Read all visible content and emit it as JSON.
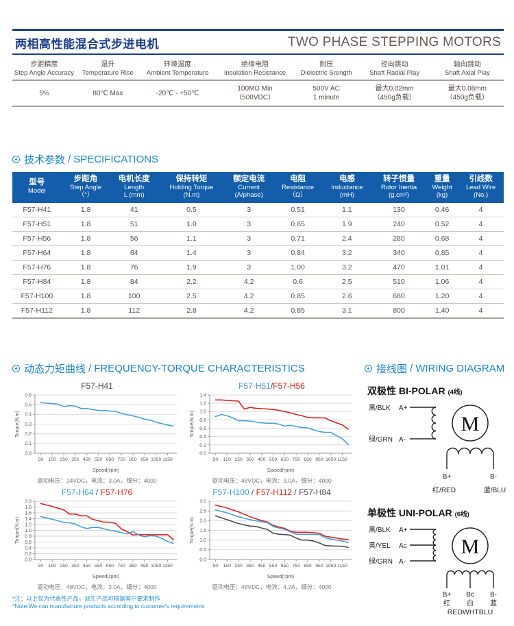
{
  "colors": {
    "navy": "#1a3e8f",
    "table_header": "#135dab",
    "section_blue": "#1583cf",
    "note_blue": "#1e8fdd",
    "line_blue": "#45a1d8",
    "line_red": "#e0201c",
    "line_dark": "#4a4a4a"
  },
  "header": {
    "title_zh": "两相高性能混合式步进电机",
    "title_en": "TWO PHASE STEPPING MOTORS"
  },
  "general_specs": {
    "columns": [
      {
        "zh": "步距精度",
        "en": "Step Angle Accuracy",
        "value": "5%",
        "value2": ""
      },
      {
        "zh": "温升",
        "en": "Temperature Rise",
        "value": "80℃  Max",
        "value2": ""
      },
      {
        "zh": "环境温度",
        "en": "Ambient Temperature",
        "value": "-20℃ - +50℃",
        "value2": ""
      },
      {
        "zh": "绝缘电阻",
        "en": "Insulation Resistance",
        "value": "100MΩ Min",
        "value2": "（500VDC）"
      },
      {
        "zh": "耐压",
        "en": "Dielectric Srength",
        "value": "500V AC",
        "value2": "1 minute"
      },
      {
        "zh": "径向跳动",
        "en": "Shaft Radial Play",
        "value": "最大0.02mm",
        "value2": "（450g负载）"
      },
      {
        "zh": "轴向跳动",
        "en": "Shaft Axial Play",
        "value": "最大0.08mm",
        "value2": "（450g负载）"
      }
    ]
  },
  "sections": {
    "specs": {
      "zh": "技术参数",
      "sep": "/",
      "en": "SPECIFICATIONS"
    },
    "freq": {
      "zh": "动态力矩曲线",
      "sep": "/",
      "en": "FREQUENCY-TORQUE CHARACTERISTICS"
    },
    "wiring": {
      "zh": "接线图",
      "sep": "/",
      "en": "WIRING DIAGRAM"
    }
  },
  "spec_table": {
    "headers": [
      [
        "型号",
        "Model"
      ],
      [
        "步距角",
        "Step Angle",
        "（°）"
      ],
      [
        "电机长度",
        "Length",
        "L (mm)"
      ],
      [
        "保持转矩",
        "Holding Torque",
        "(N.m)"
      ],
      [
        "额定电流",
        "Current",
        "(A/phase)"
      ],
      [
        "电阻",
        "Resistance",
        "（Ω）"
      ],
      [
        "电感",
        "Inductance",
        "(mH)"
      ],
      [
        "转子惯量",
        "Rotor Inertia",
        "(g.cm²)"
      ],
      [
        "重量",
        "Weight",
        "(kg)"
      ],
      [
        "引线数",
        "Lead Wire",
        "(No.)"
      ]
    ],
    "rows": [
      [
        "F57-H41",
        "1.8",
        "41",
        "0.5",
        "3",
        "0.51",
        "1.1",
        "130",
        "0.46",
        "4"
      ],
      [
        "F57-H51",
        "1.8",
        "51",
        "1.0",
        "3",
        "0.65",
        "1.9",
        "240",
        "0.52",
        "4"
      ],
      [
        "F57-H56",
        "1.8",
        "56",
        "1.1",
        "3",
        "0.71",
        "2.4",
        "280",
        "0.68",
        "4"
      ],
      [
        "F57-H64",
        "1.8",
        "64",
        "1.4",
        "3",
        "0.84",
        "3.2",
        "340",
        "0.85",
        "4"
      ],
      [
        "F57-H76",
        "1.8",
        "76",
        "1.9",
        "3",
        "1.00",
        "3.2",
        "470",
        "1.01",
        "4"
      ],
      [
        "F57-H84",
        "1.8",
        "84",
        "2.2",
        "4.2",
        "0.6",
        "2.5",
        "510",
        "1.06",
        "4"
      ],
      [
        "F57-H100",
        "1.8",
        "100",
        "2.5",
        "4.2",
        "0.85",
        "2.6",
        "680",
        "1.20",
        "4"
      ],
      [
        "F57-H112",
        "1.8",
        "112",
        "2.8",
        "4.2",
        "0.85",
        "3.1",
        "800",
        "1.40",
        "4"
      ]
    ]
  },
  "chart_data": [
    {
      "type": "line",
      "title_parts": [
        {
          "text": "F57-H41",
          "color": "#4a4a4a"
        }
      ],
      "xlabel": "Speed(rpm)",
      "ylabel": "Torque(N.m)",
      "caption": "驱动电压：24VDC，电流：3.0A，细分：4000",
      "xlim": [
        0,
        1230
      ],
      "ylim": [
        0,
        0.6
      ],
      "y_step": 0.1,
      "x_ticks": [
        50,
        150,
        250,
        350,
        450,
        550,
        650,
        750,
        850,
        950,
        1050,
        1150
      ],
      "x": [
        50,
        100,
        150,
        200,
        250,
        300,
        350,
        400,
        450,
        500,
        550,
        600,
        650,
        700,
        750,
        800,
        850,
        900,
        950,
        1000,
        1050,
        1100,
        1150,
        1200
      ],
      "series": [
        {
          "name": "F57-H41",
          "color": "#45a1d8",
          "y": [
            0.52,
            0.515,
            0.51,
            0.505,
            0.48,
            0.49,
            0.485,
            0.46,
            0.46,
            0.45,
            0.44,
            0.44,
            0.435,
            0.43,
            0.41,
            0.395,
            0.385,
            0.37,
            0.35,
            0.34,
            0.32,
            0.305,
            0.29,
            0.28
          ]
        }
      ]
    },
    {
      "type": "line",
      "title_parts": [
        {
          "text": "F57-H51",
          "color": "#3e9bd6"
        },
        {
          "text": "/",
          "color": "#4a4a4a"
        },
        {
          "text": "F57-H56",
          "color": "#e0201c"
        }
      ],
      "xlabel": "Speed(rpm)",
      "ylabel": "Torque(N.m)",
      "caption": "驱动电压：48VDC，电流：3.0A，细分：4000",
      "xlim": [
        0,
        1230
      ],
      "ylim": [
        0,
        1.4
      ],
      "y_step": 0.2,
      "x_ticks": [
        50,
        150,
        250,
        350,
        450,
        550,
        650,
        750,
        850,
        950,
        1050,
        1150
      ],
      "x": [
        50,
        100,
        150,
        200,
        250,
        300,
        350,
        400,
        450,
        500,
        550,
        600,
        650,
        700,
        750,
        800,
        850,
        900,
        950,
        1000,
        1050,
        1100,
        1150,
        1200
      ],
      "series": [
        {
          "name": "F57-H56",
          "color": "#e0201c",
          "y": [
            1.28,
            1.28,
            1.27,
            1.26,
            1.25,
            1.06,
            1.1,
            1.08,
            1.07,
            1.06,
            1.05,
            1.03,
            1.0,
            0.97,
            0.93,
            0.9,
            0.86,
            0.85,
            0.85,
            0.85,
            0.78,
            0.73,
            0.68,
            0.58
          ]
        },
        {
          "name": "F57-H51",
          "color": "#45a1d8",
          "y": [
            0.88,
            0.93,
            0.9,
            0.85,
            0.78,
            0.78,
            0.77,
            0.75,
            0.73,
            0.72,
            0.72,
            0.7,
            0.65,
            0.67,
            0.64,
            0.62,
            0.61,
            0.56,
            0.52,
            0.5,
            0.5,
            0.42,
            0.35,
            0.21
          ]
        }
      ]
    },
    {
      "type": "line",
      "title_parts": [
        {
          "text": "F57-H64",
          "color": "#3e9bd6"
        },
        {
          "text": " / ",
          "color": "#4a4a4a"
        },
        {
          "text": "F57-H76",
          "color": "#e0201c"
        }
      ],
      "xlabel": "Speed(rpm)",
      "ylabel": "Torque(N.m)",
      "caption": "驱动电压：48VDC，电流：3.0A，细分：4000",
      "xlim": [
        0,
        1230
      ],
      "ylim": [
        0,
        2.0
      ],
      "y_step": 0.2,
      "x_ticks": [
        50,
        150,
        250,
        350,
        450,
        550,
        650,
        750,
        850,
        950,
        1050,
        1150
      ],
      "x": [
        50,
        100,
        150,
        200,
        250,
        300,
        350,
        400,
        450,
        500,
        550,
        600,
        650,
        700,
        750,
        800,
        850,
        900,
        950,
        1000,
        1050,
        1100,
        1150,
        1200
      ],
      "series": [
        {
          "name": "F57-H76",
          "color": "#e0201c",
          "y": [
            1.92,
            1.87,
            1.82,
            1.76,
            1.7,
            1.56,
            1.56,
            1.5,
            1.5,
            1.38,
            1.33,
            1.28,
            1.28,
            1.24,
            1.05,
            0.95,
            0.84,
            0.86,
            0.85,
            0.85,
            0.85,
            0.85,
            0.85,
            0.68
          ]
        },
        {
          "name": "F57-H64",
          "color": "#45a1d8",
          "y": [
            1.47,
            1.43,
            1.38,
            1.33,
            1.27,
            1.26,
            1.22,
            1.12,
            1.06,
            1.1,
            1.1,
            1.05,
            1.0,
            0.97,
            0.92,
            0.88,
            0.96,
            0.84,
            0.78,
            0.82,
            0.8,
            0.72,
            0.62,
            0.55
          ]
        }
      ]
    },
    {
      "type": "line",
      "title_parts": [
        {
          "text": "F57-H100",
          "color": "#3e9bd6"
        },
        {
          "text": " / ",
          "color": "#4a4a4a"
        },
        {
          "text": "F57-H112",
          "color": "#e0201c"
        },
        {
          "text": " / ",
          "color": "#4a4a4a"
        },
        {
          "text": "F57-H84",
          "color": "#4a4a4a"
        }
      ],
      "xlabel": "Speed(rpm)",
      "ylabel": "Torque(N.m)",
      "caption": "驱动电压：48VDC，电流：4.2A，细分：4000",
      "xlim": [
        0,
        1230
      ],
      "ylim": [
        0,
        3.0
      ],
      "y_step": 0.5,
      "x_ticks": [
        50,
        150,
        250,
        350,
        450,
        550,
        650,
        750,
        850,
        950,
        1050,
        1150
      ],
      "x": [
        50,
        100,
        150,
        200,
        250,
        300,
        350,
        400,
        450,
        500,
        550,
        600,
        650,
        700,
        750,
        800,
        850,
        900,
        950,
        1000,
        1050,
        1100,
        1150,
        1200
      ],
      "series": [
        {
          "name": "F57-H112",
          "color": "#e0201c",
          "y": [
            2.8,
            2.73,
            2.65,
            2.55,
            2.45,
            2.33,
            2.2,
            2.1,
            2.0,
            1.93,
            1.75,
            1.67,
            1.6,
            1.45,
            1.4,
            1.4,
            1.4,
            1.38,
            1.35,
            1.2,
            1.15,
            1.1,
            1.05,
            1.03
          ]
        },
        {
          "name": "F57-H100",
          "color": "#45a1d8",
          "y": [
            2.55,
            2.48,
            2.4,
            2.3,
            2.2,
            2.12,
            2.05,
            2.0,
            1.95,
            1.9,
            1.7,
            1.62,
            1.55,
            1.42,
            1.3,
            1.3,
            1.3,
            1.29,
            1.28,
            1.12,
            1.05,
            1.0,
            0.95,
            0.87
          ]
        },
        {
          "name": "F57-H84",
          "color": "#4a4a4a",
          "y": [
            2.25,
            2.15,
            2.05,
            1.95,
            1.85,
            1.78,
            1.72,
            1.7,
            1.62,
            1.55,
            1.35,
            1.3,
            1.28,
            1.25,
            1.1,
            1.0,
            1.0,
            0.95,
            0.85,
            0.72,
            0.7,
            0.69,
            0.68,
            0.62
          ]
        }
      ]
    }
  ],
  "wiring": {
    "bipolar": {
      "title_zh": "双极性",
      "title_en": "BI-POLAR",
      "suffix": "(4线)",
      "labels": {
        "blk": "黑/BLK",
        "a_plus": "A+",
        "grn": "绿/GRN",
        "a_minus": "A-",
        "motor": "M",
        "b_plus": "B+",
        "b_minus": "B-",
        "red": "红/RED",
        "blu": "蓝/BLU"
      }
    },
    "unipolar": {
      "title_zh": "单极性",
      "title_en": "UNI-POLAR",
      "suffix": "(6线)",
      "labels": {
        "blk": "黑/BLK",
        "a_plus": "A+",
        "yel": "黄/YEL",
        "ac": "Ac",
        "grn": "绿/GRN",
        "a_minus": "A-",
        "motor": "M",
        "b_plus": "B+",
        "bc": "Bc",
        "b_minus": "B-",
        "red": "红",
        "wht": "白",
        "blu": "蓝",
        "rgb_line": "REDWHTBLU"
      }
    }
  },
  "footer": {
    "note_zh": "*注：以上仅为代表性产品，派生产品可根据客户要求制作",
    "note_en": "*Note:We can manufacture products according to customer's requirements"
  }
}
